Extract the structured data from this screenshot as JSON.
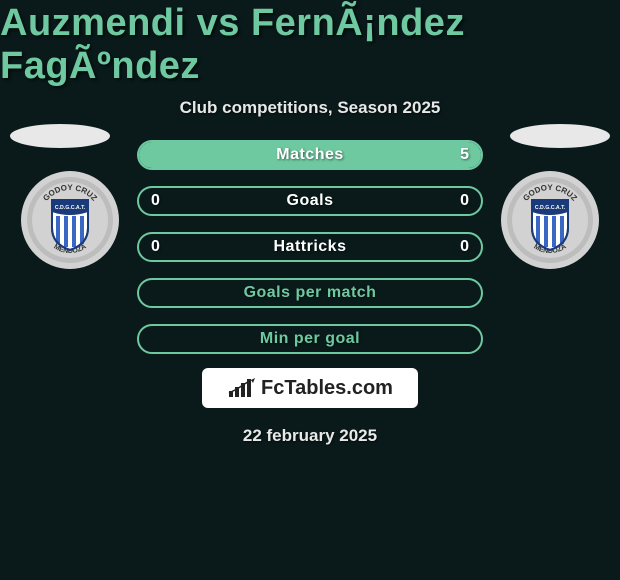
{
  "background_color": "#0a1a1a",
  "title": "Auzmendi vs FernÃ¡ndez FagÃºndez",
  "title_color": "#6ec8a0",
  "subtitle": "Club competitions, Season 2025",
  "subtitle_color": "#e8e8e8",
  "oval_color": "#e8e8e8",
  "date": "22 february 2025",
  "date_color": "#e8e8e8",
  "rows": [
    {
      "label": "Matches",
      "left": "",
      "right": "5",
      "border_color": "#6ec8a0",
      "fill_color": "#6ec8a0",
      "fill_pct": 100,
      "text_color": "#ffffff"
    },
    {
      "label": "Goals",
      "left": "0",
      "right": "0",
      "border_color": "#6ec8a0",
      "fill_color": "#6ec8a0",
      "fill_pct": 0,
      "text_color": "#ffffff"
    },
    {
      "label": "Hattricks",
      "left": "0",
      "right": "0",
      "border_color": "#6ec8a0",
      "fill_color": "#6ec8a0",
      "fill_pct": 0,
      "text_color": "#ffffff"
    },
    {
      "label": "Goals per match",
      "left": "",
      "right": "",
      "border_color": "#6ec8a0",
      "fill_color": "#6ec8a0",
      "fill_pct": 0,
      "text_color": "#6ec8a0"
    },
    {
      "label": "Min per goal",
      "left": "",
      "right": "",
      "border_color": "#6ec8a0",
      "fill_color": "#6ec8a0",
      "fill_pct": 0,
      "text_color": "#6ec8a0"
    }
  ],
  "row_track_color": "#0a1a1a",
  "club_badge": {
    "outer_ring": "#d2d2d2",
    "inner_ring": "#bdbdbd",
    "shield_border": "#1a3a7a",
    "shield_fill": "#ffffff",
    "stripe_color": "#3a66c4",
    "banner_color": "#1a3a7a",
    "text_top": "GODOY CRUZ",
    "text_bottom": "MENDOZA",
    "text_inner": "C.D.G.C.A.T."
  },
  "logo": {
    "bg": "#ffffff",
    "text": "FcTables.com",
    "text_color": "#222222"
  }
}
